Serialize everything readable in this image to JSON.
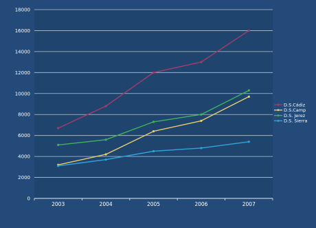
{
  "chart_data": {
    "type": "line",
    "categories": [
      "2003",
      "2004",
      "2005",
      "2006",
      "2007"
    ],
    "ylim": [
      0,
      18000
    ],
    "yticks": [
      "0",
      "2000",
      "4000",
      "6000",
      "8000",
      "10000",
      "12000",
      "14000",
      "16000",
      "18000"
    ],
    "grid": true,
    "legend_placement": "right",
    "colors": {
      "background": "#234a79",
      "plot_background": "#1f456f",
      "gridline": "#dbe3ee",
      "axis": "#e6ecf3"
    },
    "series": [
      {
        "name": "D.S.Cádiz",
        "color": "#a63a68",
        "values": [
          6700,
          8800,
          12000,
          13000,
          16000
        ]
      },
      {
        "name": "D.S.Camp",
        "color": "#e8cf6a",
        "values": [
          3200,
          4200,
          6400,
          7400,
          9700
        ]
      },
      {
        "name": "D.S. Jerez",
        "color": "#3fb35a",
        "values": [
          5100,
          5600,
          7300,
          8000,
          10300
        ]
      },
      {
        "name": "D.S. Sierra",
        "color": "#2fa4d8",
        "values": [
          3100,
          3700,
          4500,
          4800,
          5400
        ]
      }
    ]
  }
}
